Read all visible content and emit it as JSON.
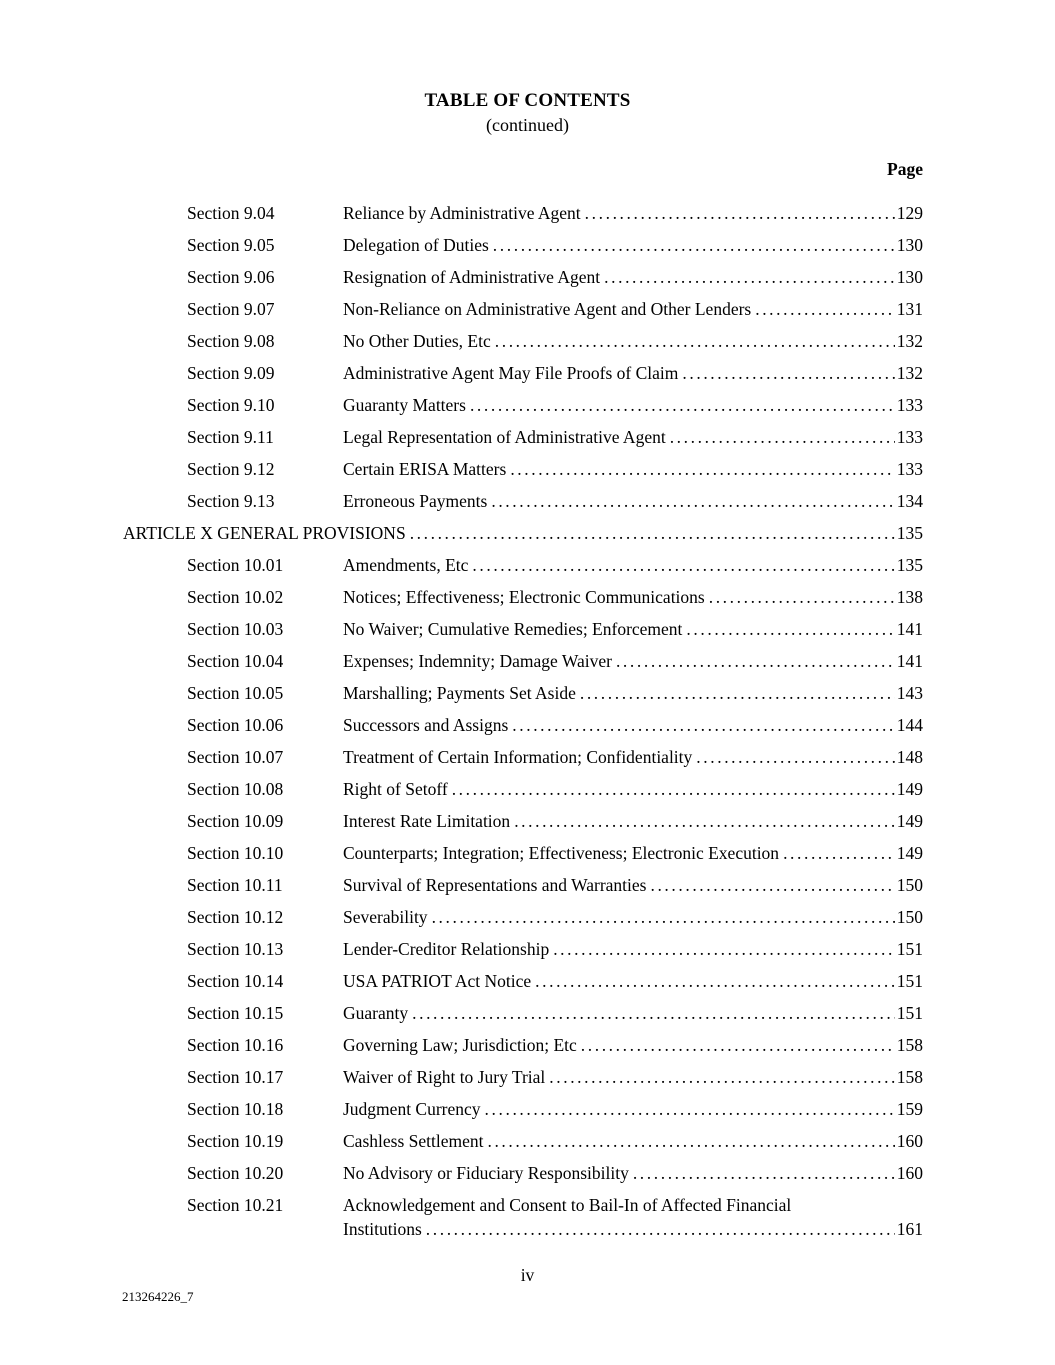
{
  "theme": {
    "background": "#ffffff",
    "text": "#000000"
  },
  "header": {
    "title": "TABLE OF CONTENTS",
    "subtitle": "(continued)",
    "page_column_label": "Page"
  },
  "toc": {
    "entries": [
      {
        "level": "section",
        "label": "Section 9.04",
        "title": "Reliance by Administrative Agent",
        "page": "129"
      },
      {
        "level": "section",
        "label": "Section 9.05",
        "title": "Delegation of Duties",
        "page": "130"
      },
      {
        "level": "section",
        "label": "Section 9.06",
        "title": "Resignation of Administrative Agent",
        "page": "130"
      },
      {
        "level": "section",
        "label": "Section 9.07",
        "title": "Non-Reliance on Administrative Agent and Other Lenders",
        "page": "131"
      },
      {
        "level": "section",
        "label": "Section 9.08",
        "title": "No Other Duties, Etc",
        "page": "132"
      },
      {
        "level": "section",
        "label": "Section 9.09",
        "title": "Administrative Agent May File Proofs of Claim",
        "page": "132"
      },
      {
        "level": "section",
        "label": "Section 9.10",
        "title": "Guaranty Matters",
        "page": "133"
      },
      {
        "level": "section",
        "label": "Section 9.11",
        "title": "Legal Representation of Administrative Agent",
        "page": "133"
      },
      {
        "level": "section",
        "label": "Section 9.12",
        "title": "Certain ERISA Matters",
        "page": "133"
      },
      {
        "level": "section",
        "label": "Section 9.13",
        "title": "Erroneous Payments",
        "page": "134"
      },
      {
        "level": "article",
        "label": "",
        "title": "ARTICLE X GENERAL PROVISIONS",
        "page": "135"
      },
      {
        "level": "section",
        "label": "Section 10.01",
        "title": "Amendments, Etc",
        "page": "135"
      },
      {
        "level": "section",
        "label": "Section 10.02",
        "title": "Notices; Effectiveness; Electronic Communications",
        "page": "138"
      },
      {
        "level": "section",
        "label": "Section 10.03",
        "title": "No Waiver; Cumulative Remedies; Enforcement",
        "page": "141"
      },
      {
        "level": "section",
        "label": "Section 10.04",
        "title": "Expenses; Indemnity; Damage Waiver",
        "page": "141"
      },
      {
        "level": "section",
        "label": "Section 10.05",
        "title": "Marshalling; Payments Set Aside",
        "page": "143"
      },
      {
        "level": "section",
        "label": "Section 10.06",
        "title": "Successors and Assigns",
        "page": "144"
      },
      {
        "level": "section",
        "label": "Section 10.07",
        "title": "Treatment of Certain Information; Confidentiality",
        "page": "148"
      },
      {
        "level": "section",
        "label": "Section 10.08",
        "title": "Right of Setoff",
        "page": "149"
      },
      {
        "level": "section",
        "label": "Section 10.09",
        "title": "Interest Rate Limitation",
        "page": "149"
      },
      {
        "level": "section",
        "label": "Section 10.10",
        "title": "Counterparts; Integration; Effectiveness; Electronic Execution",
        "page": "149"
      },
      {
        "level": "section",
        "label": "Section 10.11",
        "title": "Survival of Representations and Warranties",
        "page": "150"
      },
      {
        "level": "section",
        "label": "Section 10.12",
        "title": "Severability",
        "page": "150"
      },
      {
        "level": "section",
        "label": "Section 10.13",
        "title": "Lender-Creditor Relationship",
        "page": "151"
      },
      {
        "level": "section",
        "label": "Section 10.14",
        "title": "USA PATRIOT Act Notice",
        "page": "151"
      },
      {
        "level": "section",
        "label": "Section 10.15",
        "title": "Guaranty",
        "page": "151"
      },
      {
        "level": "section",
        "label": "Section 10.16",
        "title": "Governing Law; Jurisdiction; Etc",
        "page": "158"
      },
      {
        "level": "section",
        "label": "Section 10.17",
        "title": "Waiver of Right to Jury Trial",
        "page": "158"
      },
      {
        "level": "section",
        "label": "Section 10.18",
        "title": "Judgment Currency",
        "page": "159"
      },
      {
        "level": "section",
        "label": "Section 10.19",
        "title": "Cashless Settlement",
        "page": "160"
      },
      {
        "level": "section",
        "label": "Section 10.20",
        "title": "No Advisory or Fiduciary Responsibility",
        "page": "160"
      },
      {
        "level": "section",
        "label": "Section 10.21",
        "title": "Acknowledgement and Consent to Bail-In of Affected Financial",
        "title_continued": "Institutions",
        "page": "161"
      }
    ]
  },
  "footer": {
    "page_number_roman": "iv",
    "document_id": "213264226_7"
  }
}
